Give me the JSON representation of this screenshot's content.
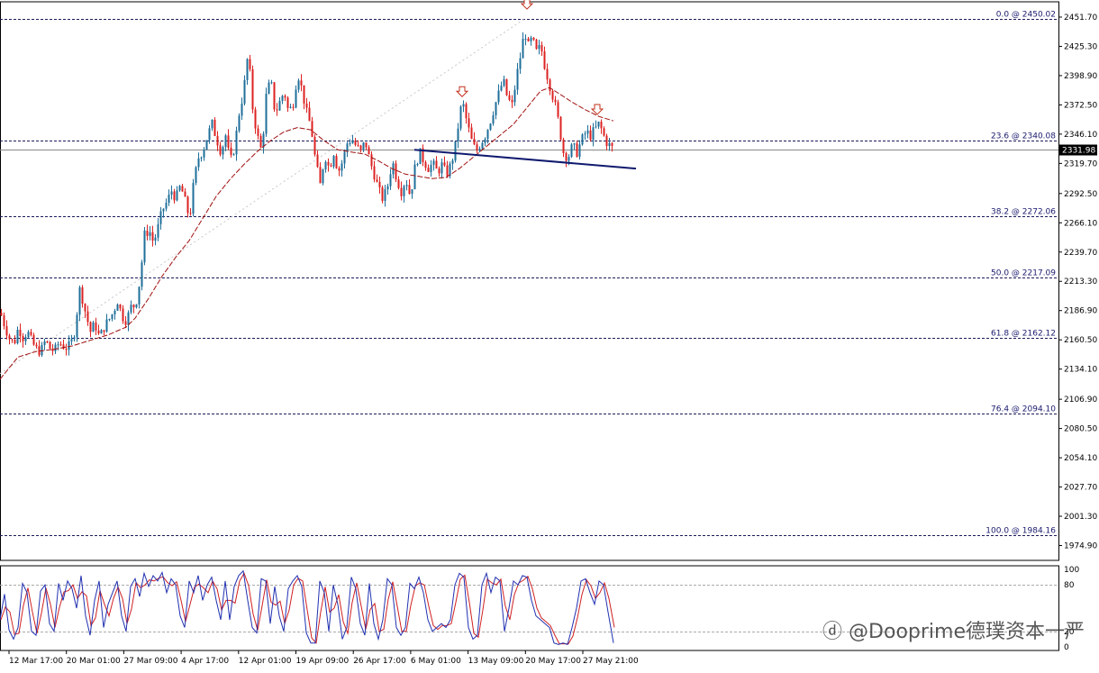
{
  "chart_data": {
    "type": "candlestick",
    "price_axis": {
      "range": [
        1961.5,
        2465.5
      ],
      "ticks": [
        "2451.70",
        "2425.30",
        "2398.90",
        "2372.50",
        "2346.10",
        "2319.70",
        "2292.50",
        "2266.10",
        "2239.70",
        "2213.30",
        "2186.90",
        "2160.50",
        "2134.10",
        "2106.90",
        "2080.50",
        "2054.10",
        "2027.70",
        "2001.30",
        "1974.90"
      ],
      "current_price_label": "2331.98",
      "current_price": 2331.98
    },
    "time_axis_labels": [
      "12 Mar 17:00",
      "20 Mar 01:00",
      "27 Mar 09:00",
      "4 Apr 17:00",
      "12 Apr 01:00",
      "19 Apr 09:00",
      "26 Apr 17:00",
      "6 May 01:00",
      "13 May 09:00",
      "20 May 17:00",
      "27 May 21:00"
    ],
    "fibonacci_levels": [
      {
        "label": "0.0 @ 2450.02",
        "price": 2450.02
      },
      {
        "label": "23.6 @ 2340.08",
        "price": 2340.08
      },
      {
        "label": "38.2 @ 2272.06",
        "price": 2272.06
      },
      {
        "label": "50.0 @ 2217.09",
        "price": 2217.09
      },
      {
        "label": "61.8 @ 2162.12",
        "price": 2162.12
      },
      {
        "label": "76.4 @ 2094.10",
        "price": 2094.1
      },
      {
        "label": "100.0 @ 1984.16",
        "price": 1984.16
      }
    ],
    "close_path": [
      [
        0,
        2185
      ],
      [
        5,
        2173
      ],
      [
        10,
        2162
      ],
      [
        15,
        2157
      ],
      [
        20,
        2172
      ],
      [
        25,
        2163
      ],
      [
        30,
        2168
      ],
      [
        35,
        2158
      ],
      [
        40,
        2152
      ],
      [
        45,
        2150
      ],
      [
        50,
        2160
      ],
      [
        55,
        2153
      ],
      [
        60,
        2150
      ],
      [
        65,
        2158
      ],
      [
        70,
        2155
      ],
      [
        75,
        2153
      ],
      [
        80,
        2160
      ],
      [
        84,
        2175
      ],
      [
        87,
        2208
      ],
      [
        91,
        2198
      ],
      [
        95,
        2183
      ],
      [
        100,
        2168
      ],
      [
        105,
        2175
      ],
      [
        110,
        2162
      ],
      [
        115,
        2172
      ],
      [
        120,
        2178
      ],
      [
        125,
        2185
      ],
      [
        130,
        2196
      ],
      [
        135,
        2182
      ],
      [
        140,
        2178
      ],
      [
        145,
        2190
      ],
      [
        150,
        2192
      ],
      [
        155,
        2215
      ],
      [
        160,
        2255
      ],
      [
        165,
        2260
      ],
      [
        170,
        2248
      ],
      [
        175,
        2262
      ],
      [
        180,
        2278
      ],
      [
        185,
        2285
      ],
      [
        190,
        2295
      ],
      [
        195,
        2288
      ],
      [
        200,
        2300
      ],
      [
        205,
        2285
      ],
      [
        210,
        2270
      ],
      [
        215,
        2305
      ],
      [
        220,
        2325
      ],
      [
        225,
        2332
      ],
      [
        230,
        2345
      ],
      [
        235,
        2355
      ],
      [
        240,
        2342
      ],
      [
        245,
        2330
      ],
      [
        250,
        2345
      ],
      [
        255,
        2320
      ],
      [
        260,
        2335
      ],
      [
        265,
        2365
      ],
      [
        270,
        2385
      ],
      [
        275,
        2420
      ],
      [
        280,
        2370
      ],
      [
        285,
        2345
      ],
      [
        290,
        2330
      ],
      [
        295,
        2380
      ],
      [
        300,
        2395
      ],
      [
        305,
        2365
      ],
      [
        310,
        2375
      ],
      [
        315,
        2385
      ],
      [
        320,
        2365
      ],
      [
        325,
        2375
      ],
      [
        330,
        2402
      ],
      [
        335,
        2385
      ],
      [
        340,
        2365
      ],
      [
        345,
        2352
      ],
      [
        350,
        2320
      ],
      [
        355,
        2300
      ],
      [
        360,
        2328
      ],
      [
        365,
        2315
      ],
      [
        370,
        2330
      ],
      [
        375,
        2312
      ],
      [
        380,
        2322
      ],
      [
        385,
        2338
      ],
      [
        390,
        2342
      ],
      [
        395,
        2335
      ],
      [
        400,
        2330
      ],
      [
        405,
        2340
      ],
      [
        410,
        2322
      ],
      [
        415,
        2310
      ],
      [
        420,
        2295
      ],
      [
        425,
        2287
      ],
      [
        430,
        2300
      ],
      [
        435,
        2322
      ],
      [
        440,
        2306
      ],
      [
        445,
        2295
      ],
      [
        450,
        2306
      ],
      [
        455,
        2290
      ],
      [
        460,
        2315
      ],
      [
        465,
        2330
      ],
      [
        470,
        2322
      ],
      [
        475,
        2316
      ],
      [
        480,
        2319
      ],
      [
        485,
        2312
      ],
      [
        490,
        2318
      ],
      [
        495,
        2310
      ],
      [
        500,
        2318
      ],
      [
        505,
        2335
      ],
      [
        510,
        2365
      ],
      [
        513,
        2375
      ],
      [
        518,
        2356
      ],
      [
        523,
        2340
      ],
      [
        528,
        2330
      ],
      [
        533,
        2338
      ],
      [
        538,
        2345
      ],
      [
        543,
        2356
      ],
      [
        548,
        2370
      ],
      [
        553,
        2382
      ],
      [
        558,
        2395
      ],
      [
        563,
        2378
      ],
      [
        568,
        2372
      ],
      [
        573,
        2398
      ],
      [
        578,
        2420
      ],
      [
        582,
        2440
      ],
      [
        586,
        2425
      ],
      [
        590,
        2432
      ],
      [
        595,
        2420
      ],
      [
        600,
        2425
      ],
      [
        605,
        2405
      ],
      [
        610,
        2390
      ],
      [
        615,
        2375
      ],
      [
        620,
        2355
      ],
      [
        625,
        2330
      ],
      [
        630,
        2325
      ],
      [
        635,
        2335
      ],
      [
        640,
        2330
      ],
      [
        645,
        2340
      ],
      [
        650,
        2348
      ],
      [
        655,
        2345
      ],
      [
        660,
        2350
      ],
      [
        665,
        2356
      ],
      [
        668,
        2348
      ],
      [
        672,
        2340
      ],
      [
        676,
        2336
      ],
      [
        681,
        2332
      ]
    ],
    "moving_average": [
      [
        0,
        2125
      ],
      [
        20,
        2145
      ],
      [
        40,
        2150
      ],
      [
        60,
        2152
      ],
      [
        80,
        2155
      ],
      [
        100,
        2160
      ],
      [
        120,
        2165
      ],
      [
        140,
        2172
      ],
      [
        150,
        2180
      ],
      [
        165,
        2198
      ],
      [
        180,
        2218
      ],
      [
        195,
        2235
      ],
      [
        210,
        2250
      ],
      [
        225,
        2270
      ],
      [
        240,
        2290
      ],
      [
        255,
        2305
      ],
      [
        270,
        2318
      ],
      [
        285,
        2330
      ],
      [
        300,
        2340
      ],
      [
        315,
        2348
      ],
      [
        330,
        2352
      ],
      [
        345,
        2350
      ],
      [
        360,
        2340
      ],
      [
        375,
        2332
      ],
      [
        390,
        2330
      ],
      [
        405,
        2328
      ],
      [
        420,
        2322
      ],
      [
        435,
        2315
      ],
      [
        450,
        2310
      ],
      [
        465,
        2308
      ],
      [
        480,
        2306
      ],
      [
        495,
        2307
      ],
      [
        510,
        2315
      ],
      [
        525,
        2325
      ],
      [
        540,
        2335
      ],
      [
        555,
        2345
      ],
      [
        570,
        2355
      ],
      [
        585,
        2370
      ],
      [
        600,
        2385
      ],
      [
        610,
        2388
      ],
      [
        620,
        2383
      ],
      [
        635,
        2375
      ],
      [
        650,
        2368
      ],
      [
        665,
        2362
      ],
      [
        681,
        2358
      ]
    ],
    "trendline": {
      "from": [
        460,
        2332
      ],
      "to": [
        706,
        2315
      ]
    },
    "arrow_markers_price": [
      2463,
      2384,
      2368
    ],
    "arrow_markers_x": [
      585,
      513,
      663
    ],
    "oscillator": {
      "ticks": [
        "100",
        "80",
        "20",
        "0"
      ],
      "levels": [
        80,
        20
      ],
      "main_series": [
        [
          0,
          35
        ],
        [
          5,
          68
        ],
        [
          10,
          22
        ],
        [
          15,
          10
        ],
        [
          20,
          25
        ],
        [
          25,
          82
        ],
        [
          30,
          70
        ],
        [
          35,
          20
        ],
        [
          40,
          15
        ],
        [
          45,
          72
        ],
        [
          50,
          80
        ],
        [
          55,
          30
        ],
        [
          60,
          20
        ],
        [
          65,
          82
        ],
        [
          70,
          60
        ],
        [
          75,
          85
        ],
        [
          80,
          75
        ],
        [
          85,
          50
        ],
        [
          90,
          92
        ],
        [
          95,
          40
        ],
        [
          100,
          15
        ],
        [
          105,
          60
        ],
        [
          110,
          85
        ],
        [
          115,
          25
        ],
        [
          120,
          55
        ],
        [
          125,
          70
        ],
        [
          130,
          85
        ],
        [
          135,
          40
        ],
        [
          140,
          20
        ],
        [
          145,
          78
        ],
        [
          150,
          88
        ],
        [
          155,
          65
        ],
        [
          160,
          95
        ],
        [
          165,
          78
        ],
        [
          170,
          92
        ],
        [
          175,
          85
        ],
        [
          180,
          96
        ],
        [
          185,
          70
        ],
        [
          190,
          88
        ],
        [
          195,
          80
        ],
        [
          200,
          40
        ],
        [
          205,
          25
        ],
        [
          210,
          85
        ],
        [
          215,
          70
        ],
        [
          220,
          92
        ],
        [
          225,
          60
        ],
        [
          230,
          80
        ],
        [
          235,
          90
        ],
        [
          240,
          60
        ],
        [
          245,
          35
        ],
        [
          250,
          85
        ],
        [
          255,
          35
        ],
        [
          260,
          78
        ],
        [
          265,
          92
        ],
        [
          270,
          98
        ],
        [
          275,
          60
        ],
        [
          280,
          25
        ],
        [
          285,
          18
        ],
        [
          290,
          88
        ],
        [
          295,
          85
        ],
        [
          300,
          30
        ],
        [
          305,
          78
        ],
        [
          310,
          40
        ],
        [
          315,
          20
        ],
        [
          320,
          75
        ],
        [
          325,
          85
        ],
        [
          330,
          92
        ],
        [
          335,
          78
        ],
        [
          340,
          18
        ],
        [
          345,
          5
        ],
        [
          350,
          5
        ],
        [
          355,
          85
        ],
        [
          360,
          70
        ],
        [
          365,
          20
        ],
        [
          370,
          80
        ],
        [
          375,
          55
        ],
        [
          380,
          10
        ],
        [
          385,
          25
        ],
        [
          390,
          90
        ],
        [
          395,
          75
        ],
        [
          400,
          30
        ],
        [
          405,
          15
        ],
        [
          410,
          82
        ],
        [
          415,
          30
        ],
        [
          420,
          10
        ],
        [
          425,
          35
        ],
        [
          430,
          88
        ],
        [
          435,
          80
        ],
        [
          440,
          25
        ],
        [
          445,
          15
        ],
        [
          450,
          25
        ],
        [
          455,
          82
        ],
        [
          460,
          75
        ],
        [
          465,
          90
        ],
        [
          470,
          70
        ],
        [
          475,
          35
        ],
        [
          480,
          20
        ],
        [
          485,
          25
        ],
        [
          490,
          30
        ],
        [
          495,
          25
        ],
        [
          500,
          35
        ],
        [
          505,
          80
        ],
        [
          510,
          95
        ],
        [
          515,
          90
        ],
        [
          520,
          25
        ],
        [
          525,
          10
        ],
        [
          530,
          15
        ],
        [
          535,
          80
        ],
        [
          540,
          95
        ],
        [
          545,
          70
        ],
        [
          550,
          90
        ],
        [
          555,
          85
        ],
        [
          560,
          20
        ],
        [
          565,
          50
        ],
        [
          570,
          85
        ],
        [
          575,
          80
        ],
        [
          580,
          92
        ],
        [
          585,
          90
        ],
        [
          590,
          60
        ],
        [
          595,
          40
        ],
        [
          600,
          35
        ],
        [
          605,
          30
        ],
        [
          610,
          25
        ],
        [
          615,
          5
        ],
        [
          620,
          3
        ],
        [
          625,
          5
        ],
        [
          630,
          3
        ],
        [
          635,
          25
        ],
        [
          640,
          50
        ],
        [
          645,
          85
        ],
        [
          650,
          88
        ],
        [
          655,
          70
        ],
        [
          660,
          55
        ],
        [
          665,
          85
        ],
        [
          670,
          80
        ],
        [
          675,
          45
        ],
        [
          681,
          5
        ]
      ]
    }
  },
  "watermark": {
    "text": "@Dooprime德璞资本一严"
  }
}
